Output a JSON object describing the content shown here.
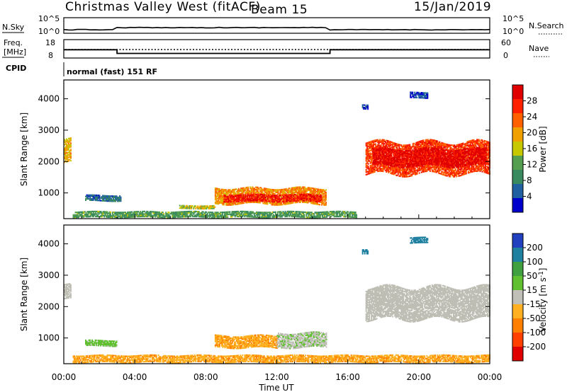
{
  "header": {
    "station": "Christmas Valley West (fitACF)",
    "beam": "Beam 15",
    "date": "15/Jan/2019"
  },
  "strip_labels": {
    "nsky": "N.Sky",
    "nsky_ticks": [
      "10^5",
      "10^0"
    ],
    "nsearch": "N.Search",
    "nsearch_ticks": [
      "10^5",
      "10^0"
    ],
    "freq": "Freq.",
    "freq_unit": "[MHz]",
    "freq_ticks": [
      "18",
      "8"
    ],
    "nave": "Nave",
    "nave_ticks": [
      "60",
      "0"
    ],
    "cpid": "CPID",
    "cpid_text": "normal (fast) 151 RF"
  },
  "colors": {
    "power_scale": [
      "#0000cc",
      "#2060a0",
      "#3a8a60",
      "#55a050",
      "#c8c800",
      "#f0a000",
      "#ff6000",
      "#ff2000",
      "#e00000"
    ],
    "velocity_scale": [
      "#e00000",
      "#ff4000",
      "#ff8000",
      "#ffb020",
      "#c0c0b8",
      "#60c030",
      "#40a040",
      "#2080a0",
      "#2040c0"
    ],
    "ground_scatter": "#bebeb4"
  },
  "chart_data": [
    {
      "type": "line",
      "name": "summary-strips",
      "x": [
        "00:00",
        "03:00",
        "15:00",
        "24:00"
      ],
      "freq_mhz": [
        12.5,
        10.5,
        12.5,
        12.5
      ],
      "nave_ticks": [
        0,
        60
      ],
      "nsky_range": [
        "10^0",
        "10^5"
      ]
    },
    {
      "type": "heatmap",
      "name": "power",
      "title": "Power [dB]",
      "xlabel": "Time UT",
      "ylabel": "Slant Range [km]",
      "xlim": [
        0,
        24
      ],
      "ylim": [
        180,
        4600
      ],
      "x_ticks": [
        "00:00",
        "04:00",
        "08:00",
        "12:00",
        "16:00",
        "20:00",
        "00:00"
      ],
      "y_ticks": [
        1000,
        2000,
        3000,
        4000
      ],
      "colorbar_ticks": [
        4,
        8,
        12,
        16,
        20,
        24,
        28
      ],
      "regions": [
        {
          "t0": 0.0,
          "t1": 0.4,
          "r0": 1900,
          "r1": 2750,
          "level": 18
        },
        {
          "t0": 1.2,
          "t1": 3.2,
          "r0": 720,
          "r1": 950,
          "level": 8
        },
        {
          "t0": 6.5,
          "t1": 8.5,
          "r0": 480,
          "r1": 620,
          "level": 16
        },
        {
          "t0": 8.5,
          "t1": 14.8,
          "r0": 600,
          "r1": 1200,
          "level": 20
        },
        {
          "t0": 9.0,
          "t1": 14.5,
          "r0": 700,
          "r1": 950,
          "level": 26
        },
        {
          "t0": 0.5,
          "t1": 16.5,
          "r0": 200,
          "r1": 420,
          "level": 12
        },
        {
          "t0": 17.0,
          "t1": 24.0,
          "r0": 1500,
          "r1": 2700,
          "level": 24
        },
        {
          "t0": 17.4,
          "t1": 23.8,
          "r0": 1800,
          "r1": 2450,
          "level": 28
        },
        {
          "t0": 19.5,
          "t1": 20.5,
          "r0": 4000,
          "r1": 4200,
          "level": 6
        },
        {
          "t0": 16.8,
          "t1": 17.1,
          "r0": 3650,
          "r1": 3800,
          "level": 6
        }
      ]
    },
    {
      "type": "heatmap",
      "name": "velocity",
      "title": "Velocity [m s⁻¹]",
      "xlabel": "Time UT",
      "ylabel": "Slant Range [km]",
      "xlim": [
        0,
        24
      ],
      "ylim": [
        180,
        4600
      ],
      "x_ticks": [
        "00:00",
        "04:00",
        "08:00",
        "12:00",
        "16:00",
        "20:00",
        "00:00"
      ],
      "y_ticks": [
        1000,
        2000,
        3000,
        4000
      ],
      "colorbar_ticks": [
        200,
        100,
        50,
        15,
        -15,
        -50,
        -100,
        -200
      ],
      "regions": [
        {
          "t0": 0.0,
          "t1": 0.4,
          "r0": 2200,
          "r1": 2750,
          "v": 0
        },
        {
          "t0": 1.2,
          "t1": 3.0,
          "r0": 720,
          "r1": 950,
          "v": 30
        },
        {
          "t0": 8.5,
          "t1": 12.0,
          "r0": 650,
          "r1": 1100,
          "v": -40
        },
        {
          "t0": 12.0,
          "t1": 14.8,
          "r0": 650,
          "r1": 1200,
          "v": 5
        },
        {
          "t0": 0.5,
          "t1": 24.0,
          "r0": 200,
          "r1": 450,
          "v": -40
        },
        {
          "t0": 17.0,
          "t1": 24.0,
          "r0": 1500,
          "r1": 2700,
          "v": 0
        },
        {
          "t0": 19.5,
          "t1": 20.5,
          "r0": 4000,
          "r1": 4200,
          "v": 150
        },
        {
          "t0": 16.8,
          "t1": 17.1,
          "r0": 3650,
          "r1": 3800,
          "v": 150
        }
      ]
    }
  ],
  "axis": {
    "ylabel": "Slant Range [km]",
    "xlabel": "Time UT",
    "power_label": "Power [dB]",
    "velocity_label": "Velocity [m s",
    "velocity_label_sup": "-1",
    "velocity_label_end": "]"
  }
}
